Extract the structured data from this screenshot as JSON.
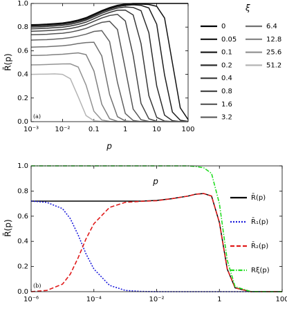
{
  "chart_data": [
    {
      "type": "line",
      "xlabel": "p",
      "ylabel": "R̄(p)",
      "annotation": "(a)",
      "legend_title": "ξ",
      "legend": "outside right",
      "log_x": true,
      "xlim": [
        0.001,
        100
      ],
      "ylim": [
        0,
        1
      ],
      "xticks": [
        {
          "value": 0.001,
          "label": "10⁻³"
        },
        {
          "value": 0.01,
          "label": "10⁻²"
        },
        0.1,
        1,
        10,
        100
      ],
      "yticks": [
        {
          "value": 0,
          "label": "0.0"
        },
        0.2,
        0.4,
        0.6,
        0.8,
        {
          "value": 1,
          "label": "1.0"
        }
      ],
      "x": [
        0.001,
        0.001778,
        0.003162,
        0.005623,
        0.01,
        0.01778,
        0.03162,
        0.05623,
        0.1,
        0.1778,
        0.3162,
        0.5623,
        1,
        1.778,
        3.162,
        5.623,
        10,
        17.78,
        31.62,
        56.23,
        100
      ],
      "series": [
        {
          "name": "0",
          "color": "#000000",
          "values": [
            0.82,
            0.822,
            0.825,
            0.83,
            0.835,
            0.845,
            0.86,
            0.88,
            0.91,
            0.94,
            0.965,
            0.985,
            0.995,
            1,
            1,
            1,
            1,
            1,
            1,
            1,
            1
          ]
        },
        {
          "name": "0.05",
          "color": "#111111",
          "values": [
            0.815,
            0.817,
            0.82,
            0.825,
            0.83,
            0.84,
            0.855,
            0.875,
            0.905,
            0.934,
            0.959,
            0.979,
            0.989,
            0.994,
            0.994,
            0.991,
            0.976,
            0.877,
            0.497,
            0.117,
            0.018
          ]
        },
        {
          "name": "0.1",
          "color": "#1e1e1e",
          "values": [
            0.81,
            0.812,
            0.815,
            0.82,
            0.825,
            0.835,
            0.85,
            0.869,
            0.899,
            0.929,
            0.953,
            0.973,
            0.983,
            0.988,
            0.984,
            0.962,
            0.824,
            0.395,
            0.081,
            0.012,
            0.002
          ]
        },
        {
          "name": "0.2",
          "color": "#2b2b2b",
          "values": [
            0.8,
            0.802,
            0.805,
            0.81,
            0.815,
            0.824,
            0.839,
            0.859,
            0.888,
            0.917,
            0.942,
            0.961,
            0.97,
            0.966,
            0.939,
            0.752,
            0.302,
            0.055,
            0.008,
            0.001,
            0
          ]
        },
        {
          "name": "0.4",
          "color": "#383838",
          "values": [
            0.785,
            0.787,
            0.79,
            0.795,
            0.799,
            0.809,
            0.823,
            0.842,
            0.871,
            0.9,
            0.924,
            0.943,
            0.944,
            0.903,
            0.661,
            0.22,
            0.036,
            0.005,
            0.001,
            0,
            0
          ]
        },
        {
          "name": "0.8",
          "color": "#464646",
          "values": [
            0.765,
            0.767,
            0.77,
            0.774,
            0.779,
            0.788,
            0.802,
            0.821,
            0.849,
            0.877,
            0.898,
            0.908,
            0.852,
            0.56,
            0.155,
            0.024,
            0.003,
            0,
            0,
            0,
            0
          ]
        },
        {
          "name": "1.6",
          "color": "#545454",
          "values": [
            0.735,
            0.737,
            0.739,
            0.744,
            0.748,
            0.757,
            0.771,
            0.789,
            0.816,
            0.84,
            0.849,
            0.779,
            0.446,
            0.106,
            0.016,
            0.002,
            0,
            0,
            0,
            0,
            0
          ]
        },
        {
          "name": "3.2",
          "color": "#626262",
          "values": [
            0.69,
            0.692,
            0.694,
            0.698,
            0.703,
            0.711,
            0.724,
            0.74,
            0.763,
            0.77,
            0.677,
            0.332,
            0.069,
            0.01,
            0.001,
            0,
            0,
            0,
            0,
            0,
            0
          ]
        },
        {
          "name": "6.4",
          "color": "#707070",
          "values": [
            0.63,
            0.632,
            0.634,
            0.638,
            0.642,
            0.649,
            0.661,
            0.669,
            0.672,
            0.556,
            0.229,
            0.042,
            0.006,
            0.001,
            0,
            0,
            0,
            0,
            0,
            0,
            0
          ]
        },
        {
          "name": "12.8",
          "color": "#808080",
          "values": [
            0.56,
            0.561,
            0.563,
            0.567,
            0.57,
            0.576,
            0.582,
            0.567,
            0.429,
            0.148,
            0.025,
            0.003,
            0,
            0,
            0,
            0,
            0,
            0,
            0,
            0,
            0
          ]
        },
        {
          "name": "25.6",
          "color": "#939393",
          "values": [
            0.48,
            0.481,
            0.483,
            0.486,
            0.488,
            0.489,
            0.462,
            0.309,
            0.088,
            0.014,
            0.002,
            0,
            0,
            0,
            0,
            0,
            0,
            0,
            0,
            0,
            0
          ]
        },
        {
          "name": "51.2",
          "color": "#b4b4b4",
          "values": [
            0.4,
            0.401,
            0.402,
            0.404,
            0.4,
            0.363,
            0.21,
            0.051,
            0.008,
            0.001,
            0,
            0,
            0,
            0,
            0,
            0,
            0,
            0,
            0,
            0,
            0
          ]
        }
      ]
    },
    {
      "type": "line",
      "xlabel": "p",
      "ylabel": "R̄(p)",
      "annotation": "(b)",
      "legend": "right",
      "log_x": true,
      "xlim": [
        1e-06,
        100
      ],
      "ylim": [
        0,
        1
      ],
      "xticks": [
        {
          "value": 1e-06,
          "label": "10⁻⁶"
        },
        {
          "value": 0.0001,
          "label": "10⁻⁴"
        },
        {
          "value": 0.01,
          "label": "10⁻²"
        },
        1,
        100
      ],
      "yticks": [
        {
          "value": 0,
          "label": "0.0"
        },
        0.2,
        0.4,
        0.6,
        0.8,
        {
          "value": 1,
          "label": "1.0"
        }
      ],
      "x": [
        1e-06,
        3.162e-06,
        1e-05,
        1.778e-05,
        3.162e-05,
        5.623e-05,
        0.0001,
        0.0003162,
        0.001,
        0.003162,
        0.01,
        0.03162,
        0.1,
        0.1778,
        0.3162,
        0.5623,
        1,
        1.778,
        3.162,
        10,
        31.62,
        100
      ],
      "series": [
        {
          "name": "R̄(p)",
          "color": "#000000",
          "dash": "solid",
          "values": [
            0.72,
            0.72,
            0.72,
            0.72,
            0.72,
            0.72,
            0.72,
            0.72,
            0.72,
            0.72,
            0.725,
            0.74,
            0.76,
            0.775,
            0.78,
            0.76,
            0.55,
            0.18,
            0.03,
            0,
            0,
            0
          ]
        },
        {
          "name": "R̄₁(p)",
          "color": "#1a1adb",
          "dash": "dotted",
          "values": [
            0.72,
            0.71,
            0.66,
            0.58,
            0.45,
            0.3,
            0.18,
            0.05,
            0.01,
            0.002,
            0,
            0,
            0,
            0,
            0,
            0,
            0,
            0,
            0,
            0,
            0,
            0
          ]
        },
        {
          "name": "R̄₂(p)",
          "color": "#e01a1a",
          "dash": "dashed",
          "values": [
            0,
            0.01,
            0.06,
            0.14,
            0.27,
            0.42,
            0.54,
            0.67,
            0.71,
            0.718,
            0.723,
            0.74,
            0.76,
            0.775,
            0.78,
            0.76,
            0.55,
            0.18,
            0.03,
            0,
            0,
            0
          ]
        },
        {
          "name": "Rξ(p)",
          "color": "#22dd22",
          "dash": "dashdot",
          "values": [
            1,
            1,
            1,
            1,
            1,
            1,
            1,
            1,
            1,
            1,
            1,
            1,
            1,
            0.995,
            0.985,
            0.94,
            0.7,
            0.25,
            0.04,
            0.001,
            0,
            0
          ]
        }
      ]
    }
  ]
}
